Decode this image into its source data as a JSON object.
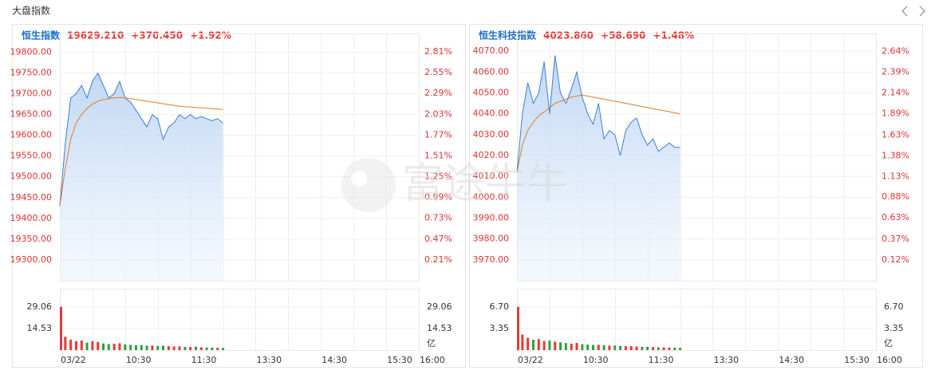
{
  "header": {
    "title": "大盘指数"
  },
  "watermark": "富途牛牛",
  "chart_data": [
    {
      "type": "line",
      "title": "恒生指数",
      "price": "19629.210",
      "change": "+370.450",
      "change_pct": "+1.92%",
      "quote_color": "#e53935",
      "x": [
        0,
        5,
        10,
        15,
        20,
        25,
        30,
        35,
        40,
        45,
        50,
        55,
        60,
        65,
        70,
        75,
        80,
        85,
        90,
        95,
        100,
        105,
        110,
        115,
        120,
        125,
        130,
        135,
        140,
        145,
        150
      ],
      "xlim": [
        0,
        330
      ],
      "xticks": [
        {
          "value": 0,
          "label": "03/22"
        },
        {
          "value": 60,
          "label": "10:30"
        },
        {
          "value": 120,
          "label": "11:30"
        },
        {
          "value": 180,
          "label": "13:30"
        },
        {
          "value": 240,
          "label": "14:30"
        },
        {
          "value": 300,
          "label": "15:30"
        },
        {
          "value": 330,
          "label": "16:00"
        }
      ],
      "xgrid": [
        30,
        60,
        90,
        120,
        150,
        180,
        210,
        240,
        270,
        300
      ],
      "ylim": [
        19250,
        19845
      ],
      "yticks": [
        {
          "value": 19800,
          "label": "19800.00"
        },
        {
          "value": 19750,
          "label": "19750.00"
        },
        {
          "value": 19700,
          "label": "19700.00"
        },
        {
          "value": 19650,
          "label": "19650.00"
        },
        {
          "value": 19600,
          "label": "19600.00"
        },
        {
          "value": 19550,
          "label": "19550.00"
        },
        {
          "value": 19500,
          "label": "19500.00"
        },
        {
          "value": 19450,
          "label": "19450.00"
        },
        {
          "value": 19400,
          "label": "19400.00"
        },
        {
          "value": 19350,
          "label": "19350.00"
        },
        {
          "value": 19300,
          "label": "19300.00"
        }
      ],
      "y2lim": [
        -0.05,
        3.04
      ],
      "y2ticks": [
        {
          "value": 2.81,
          "label": "2.81%"
        },
        {
          "value": 2.55,
          "label": "2.55%"
        },
        {
          "value": 2.29,
          "label": "2.29%"
        },
        {
          "value": 2.03,
          "label": "2.03%"
        },
        {
          "value": 1.77,
          "label": "1.77%"
        },
        {
          "value": 1.51,
          "label": "1.51%"
        },
        {
          "value": 1.25,
          "label": "1.25%"
        },
        {
          "value": 0.99,
          "label": "0.99%"
        },
        {
          "value": 0.73,
          "label": "0.73%"
        },
        {
          "value": 0.47,
          "label": "0.47%"
        },
        {
          "value": 0.21,
          "label": "0.21%"
        }
      ],
      "series": [
        {
          "color": "#3b7fd4",
          "values": [
            19430,
            19580,
            19690,
            19700,
            19720,
            19690,
            19730,
            19750,
            19720,
            19690,
            19700,
            19730,
            19690,
            19680,
            19660,
            19640,
            19620,
            19650,
            19640,
            19590,
            19620,
            19630,
            19650,
            19640,
            19650,
            19640,
            19645,
            19640,
            19635,
            19640,
            19629.21
          ]
        },
        {
          "color": "#e07b2a",
          "values": [
            19430,
            19520,
            19590,
            19630,
            19650,
            19665,
            19675,
            19682,
            19686,
            19688,
            19690,
            19691,
            19690,
            19688,
            19686,
            19684,
            19682,
            19680,
            19678,
            19676,
            19674,
            19672,
            19670,
            19669,
            19668,
            19667,
            19666,
            19665,
            19664,
            19663,
            19662
          ]
        }
      ],
      "volume": {
        "ylim": [
          0,
          41.3
        ],
        "yticks": [
          29.06,
          14.53
        ],
        "unit": "亿",
        "up_color": "#e53935",
        "down_color": "#2e9e48",
        "values": [
          29.06,
          9,
          7,
          6,
          6.5,
          5,
          6,
          5.5,
          4.5,
          4,
          4.2,
          4.6,
          3.8,
          3.5,
          3.2,
          3.4,
          3,
          3.1,
          2.8,
          3,
          2.6,
          2.4,
          2.5,
          2.2,
          2.1,
          2.3,
          1.9,
          1.8,
          1.7,
          1.6,
          1.5
        ]
      }
    },
    {
      "type": "line",
      "title": "恒生科技指数",
      "price": "4023.860",
      "change": "+58.690",
      "change_pct": "+1.48%",
      "quote_color": "#e53935",
      "x": [
        0,
        5,
        10,
        15,
        20,
        25,
        30,
        35,
        40,
        45,
        50,
        55,
        60,
        65,
        70,
        75,
        80,
        85,
        90,
        95,
        100,
        105,
        110,
        115,
        120,
        125,
        130,
        135,
        140,
        145,
        150
      ],
      "xlim": [
        0,
        330
      ],
      "xticks": [
        {
          "value": 0,
          "label": "03/22"
        },
        {
          "value": 60,
          "label": "10:30"
        },
        {
          "value": 120,
          "label": "11:30"
        },
        {
          "value": 180,
          "label": "13:30"
        },
        {
          "value": 240,
          "label": "14:30"
        },
        {
          "value": 300,
          "label": "15:30"
        },
        {
          "value": 330,
          "label": "16:00"
        }
      ],
      "xgrid": [
        30,
        60,
        90,
        120,
        150,
        180,
        210,
        240,
        270,
        300
      ],
      "ylim": [
        3960,
        4078.5
      ],
      "yticks": [
        {
          "value": 4070,
          "label": "4070.00"
        },
        {
          "value": 4060,
          "label": "4060.00"
        },
        {
          "value": 4050,
          "label": "4050.00"
        },
        {
          "value": 4040,
          "label": "4040.00"
        },
        {
          "value": 4030,
          "label": "4030.00"
        },
        {
          "value": 4020,
          "label": "4020.00"
        },
        {
          "value": 4010,
          "label": "4010.00"
        },
        {
          "value": 4000,
          "label": "4000.00"
        },
        {
          "value": 3990,
          "label": "3990.00"
        },
        {
          "value": 3980,
          "label": "3980.00"
        },
        {
          "value": 3970,
          "label": "3970.00"
        }
      ],
      "y2lim": [
        -0.13,
        2.858
      ],
      "y2ticks": [
        {
          "value": 2.64,
          "label": "2.64%"
        },
        {
          "value": 2.39,
          "label": "2.39%"
        },
        {
          "value": 2.14,
          "label": "2.14%"
        },
        {
          "value": 1.89,
          "label": "1.89%"
        },
        {
          "value": 1.63,
          "label": "1.63%"
        },
        {
          "value": 1.38,
          "label": "1.38%"
        },
        {
          "value": 1.13,
          "label": "1.13%"
        },
        {
          "value": 0.88,
          "label": "0.88%"
        },
        {
          "value": 0.63,
          "label": "0.63%"
        },
        {
          "value": 0.37,
          "label": "0.37%"
        },
        {
          "value": 0.12,
          "label": "0.12%"
        }
      ],
      "series": [
        {
          "color": "#3b7fd4",
          "values": [
            4012,
            4040,
            4055,
            4045,
            4050,
            4065,
            4040,
            4068,
            4050,
            4045,
            4052,
            4060,
            4048,
            4040,
            4035,
            4045,
            4028,
            4032,
            4030,
            4020,
            4032,
            4036,
            4038,
            4030,
            4025,
            4028,
            4022,
            4024,
            4026,
            4024,
            4023.86
          ]
        },
        {
          "color": "#e07b2a",
          "values": [
            4012,
            4025,
            4032,
            4036,
            4039,
            4041,
            4043,
            4045,
            4046,
            4047,
            4048,
            4048.5,
            4049,
            4048.5,
            4048,
            4047.5,
            4047,
            4046.5,
            4046,
            4045.5,
            4045,
            4044.5,
            4044,
            4043.5,
            4043,
            4042.5,
            4042,
            4041.5,
            4041,
            4040.5,
            4040
          ]
        }
      ],
      "volume": {
        "ylim": [
          0,
          9.53
        ],
        "yticks": [
          {
            "value": 6.7,
            "label": "6.70"
          },
          3.35
        ],
        "unit": "亿",
        "up_color": "#e53935",
        "down_color": "#2e9e48",
        "values": [
          6.7,
          2.4,
          1.9,
          1.6,
          1.7,
          1.4,
          1.5,
          1.3,
          1.2,
          1.1,
          1.0,
          1.1,
          0.9,
          0.85,
          0.8,
          0.82,
          0.75,
          0.7,
          0.72,
          0.65,
          0.6,
          0.62,
          0.55,
          0.5,
          0.52,
          0.48,
          0.45,
          0.42,
          0.4,
          0.38,
          0.35
        ]
      }
    }
  ]
}
